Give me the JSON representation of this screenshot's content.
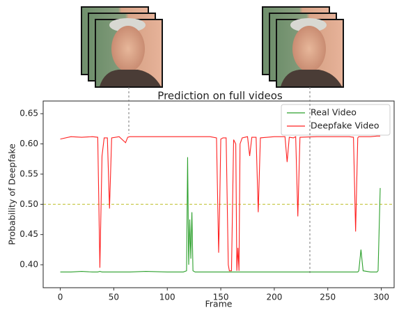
{
  "chart_data": {
    "type": "line",
    "title": "Prediction on full videos",
    "x_label": "Frame",
    "y_label": "Probability of Deepfake",
    "x": [
      0,
      10,
      20,
      30,
      35,
      37,
      39,
      41,
      44,
      46,
      48,
      55,
      61,
      63,
      65,
      80,
      100,
      115,
      118,
      119,
      120,
      121,
      122,
      123,
      124,
      126,
      140,
      146,
      148,
      149,
      150,
      152,
      155,
      157,
      158,
      160,
      162,
      164,
      165,
      166,
      167,
      168,
      170,
      175,
      177,
      179,
      183,
      185,
      187,
      200,
      210,
      212,
      214,
      218,
      220,
      222,
      224,
      240,
      260,
      270,
      274,
      276,
      278,
      279,
      281,
      283,
      290,
      296,
      297,
      299
    ],
    "series": [
      {
        "name": "Real Video",
        "color": "#2ca02c",
        "values": [
          0.388,
          0.388,
          0.389,
          0.388,
          0.388,
          0.389,
          0.388,
          0.388,
          0.388,
          0.388,
          0.388,
          0.388,
          0.388,
          0.388,
          0.388,
          0.389,
          0.388,
          0.388,
          0.39,
          0.578,
          0.4,
          0.475,
          0.41,
          0.487,
          0.39,
          0.388,
          0.388,
          0.388,
          0.388,
          0.388,
          0.388,
          0.388,
          0.388,
          0.388,
          0.388,
          0.388,
          0.388,
          0.388,
          0.388,
          0.388,
          0.388,
          0.388,
          0.388,
          0.388,
          0.388,
          0.388,
          0.388,
          0.388,
          0.388,
          0.388,
          0.388,
          0.388,
          0.388,
          0.388,
          0.388,
          0.388,
          0.388,
          0.388,
          0.388,
          0.388,
          0.388,
          0.388,
          0.388,
          0.39,
          0.425,
          0.39,
          0.388,
          0.388,
          0.39,
          0.527
        ]
      },
      {
        "name": "Deepfake Video",
        "color": "#ff2020",
        "values": [
          0.608,
          0.612,
          0.611,
          0.612,
          0.611,
          0.395,
          0.58,
          0.61,
          0.61,
          0.493,
          0.61,
          0.612,
          0.602,
          0.611,
          0.612,
          0.612,
          0.612,
          0.612,
          0.612,
          0.612,
          0.612,
          0.612,
          0.612,
          0.612,
          0.612,
          0.612,
          0.612,
          0.61,
          0.42,
          0.5,
          0.608,
          0.61,
          0.61,
          0.4,
          0.39,
          0.39,
          0.607,
          0.6,
          0.39,
          0.428,
          0.39,
          0.6,
          0.61,
          0.612,
          0.58,
          0.611,
          0.611,
          0.487,
          0.61,
          0.612,
          0.612,
          0.57,
          0.611,
          0.61,
          0.612,
          0.48,
          0.611,
          0.612,
          0.612,
          0.612,
          0.611,
          0.455,
          0.61,
          0.612,
          0.612,
          0.612,
          0.612,
          0.613,
          0.613,
          0.613
        ]
      }
    ],
    "hline": {
      "value": 0.5,
      "color": "#bcbd22"
    },
    "xlim": [
      -16,
      312
    ],
    "ylim": [
      0.362,
      0.671
    ],
    "xticks": [
      0,
      50,
      100,
      150,
      200,
      250,
      300
    ],
    "yticks": [
      {
        "value": 0.4,
        "label": "0.40"
      },
      0.45,
      {
        "value": 0.5,
        "label": "0.50"
      },
      0.55,
      {
        "value": 0.6,
        "label": "0.60"
      },
      0.65
    ],
    "legend": "upper right"
  }
}
